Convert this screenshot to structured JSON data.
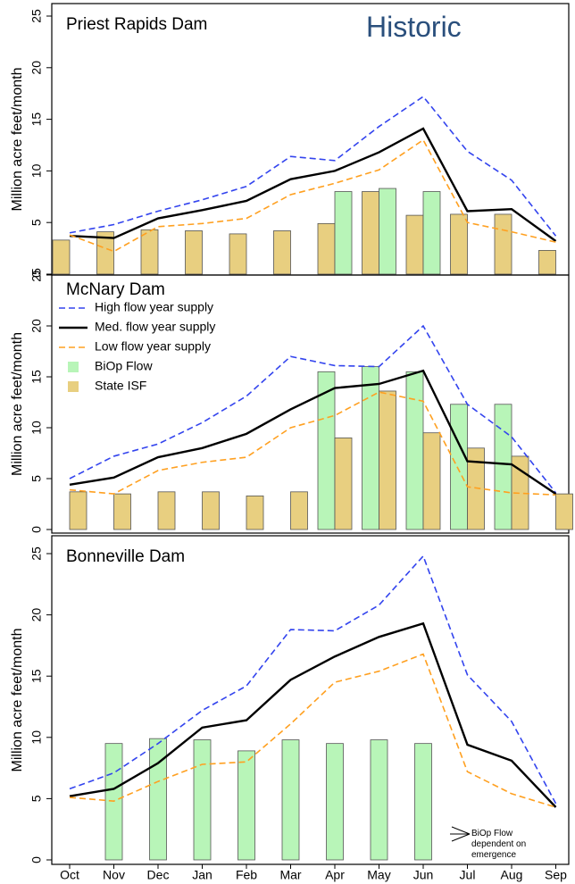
{
  "label": "Historic",
  "chart_data": [
    {
      "type": "combo",
      "title": "Priest Rapids Dam",
      "ylabel": "Million acre feet/month",
      "ylim": [
        0,
        25
      ],
      "yticks": [
        0,
        5,
        10,
        15,
        20,
        25
      ],
      "series": [
        {
          "type": "bar",
          "color": "#e8cf80",
          "values": [
            3.3,
            4.1,
            4.3,
            4.2,
            3.9,
            4.2,
            4.9,
            8.0,
            5.7,
            5.8,
            5.8,
            2.3
          ]
        },
        {
          "type": "bar",
          "color": "#b8f5b8",
          "values": [
            null,
            null,
            null,
            null,
            null,
            null,
            8.0,
            8.3,
            8.0,
            null,
            null,
            null
          ]
        },
        {
          "type": "line",
          "dashed": true,
          "color": "#3344ee",
          "values": [
            4.0,
            4.8,
            6.1,
            7.2,
            8.5,
            11.4,
            11.0,
            14.3,
            17.2,
            11.9,
            9.1,
            3.7
          ]
        },
        {
          "type": "line",
          "dashed": false,
          "color": "#000000",
          "values": [
            3.7,
            3.5,
            5.4,
            6.2,
            7.1,
            9.2,
            10.0,
            11.8,
            14.1,
            6.1,
            6.3,
            3.2
          ]
        },
        {
          "type": "line",
          "dashed": true,
          "color": "#ffa020",
          "values": [
            3.8,
            2.2,
            4.6,
            4.9,
            5.4,
            7.7,
            8.8,
            10.1,
            13.0,
            5.0,
            4.1,
            3.1
          ]
        }
      ]
    },
    {
      "type": "combo",
      "title": "McNary Dam",
      "ylabel": "Million acre feet/month",
      "ylim": [
        0,
        25
      ],
      "yticks": [
        0,
        5,
        10,
        15,
        20,
        25
      ],
      "legend": "upper left",
      "series": [
        {
          "name": "High flow year supply",
          "type": "line",
          "dashed": true,
          "color": "#3344ee",
          "values": [
            5.0,
            7.2,
            8.4,
            10.5,
            13.1,
            17.0,
            16.1,
            16.0,
            20.0,
            12.3,
            9.1,
            3.6
          ]
        },
        {
          "name": "Med. flow year supply",
          "type": "line",
          "dashed": false,
          "color": "#000000",
          "values": [
            4.4,
            5.1,
            7.1,
            8.0,
            9.4,
            11.8,
            13.9,
            14.3,
            15.6,
            6.7,
            6.4,
            3.5
          ]
        },
        {
          "name": "Low flow year supply",
          "type": "line",
          "dashed": true,
          "color": "#ffa020",
          "values": [
            3.9,
            3.5,
            5.8,
            6.6,
            7.1,
            10.0,
            11.2,
            13.5,
            12.6,
            4.2,
            3.6,
            3.4
          ]
        },
        {
          "name": "BiOp Flow",
          "type": "bar",
          "color": "#b8f5b8",
          "values": [
            null,
            null,
            null,
            null,
            null,
            null,
            15.5,
            16.0,
            15.5,
            12.3,
            12.3,
            null
          ]
        },
        {
          "name": "State ISF",
          "type": "bar",
          "color": "#e8cf80",
          "values": [
            3.7,
            3.5,
            3.7,
            3.7,
            3.3,
            3.7,
            9.0,
            13.6,
            9.5,
            8.0,
            7.2,
            3.5
          ]
        }
      ]
    },
    {
      "type": "combo",
      "title": "Bonneville Dam",
      "ylabel": "Million acre feet/month",
      "ylim": [
        0,
        25
      ],
      "yticks": [
        0,
        5,
        10,
        15,
        20,
        25
      ],
      "categories": [
        "Oct",
        "Nov",
        "Dec",
        "Jan",
        "Feb",
        "Mar",
        "Apr",
        "May",
        "Jun",
        "Jul",
        "Aug",
        "Sep"
      ],
      "annotation": "BiOp Flow dependent on emergence",
      "series": [
        {
          "type": "bar",
          "color": "#b8f5b8",
          "values": [
            null,
            9.5,
            9.9,
            9.8,
            8.9,
            9.8,
            9.5,
            9.8,
            9.5,
            null,
            null,
            null
          ]
        },
        {
          "type": "line",
          "dashed": true,
          "color": "#3344ee",
          "values": [
            5.8,
            7.1,
            9.5,
            12.2,
            14.2,
            18.8,
            18.7,
            20.8,
            24.8,
            15.1,
            11.3,
            4.6
          ]
        },
        {
          "type": "line",
          "dashed": false,
          "color": "#000000",
          "values": [
            5.2,
            5.8,
            7.9,
            10.8,
            11.4,
            14.7,
            16.6,
            18.2,
            19.3,
            9.4,
            8.1,
            4.3
          ]
        },
        {
          "type": "line",
          "dashed": true,
          "color": "#ffa020",
          "values": [
            5.1,
            4.8,
            6.4,
            7.8,
            8.0,
            11.1,
            14.5,
            15.4,
            16.8,
            7.2,
            5.4,
            4.3
          ]
        }
      ]
    }
  ]
}
